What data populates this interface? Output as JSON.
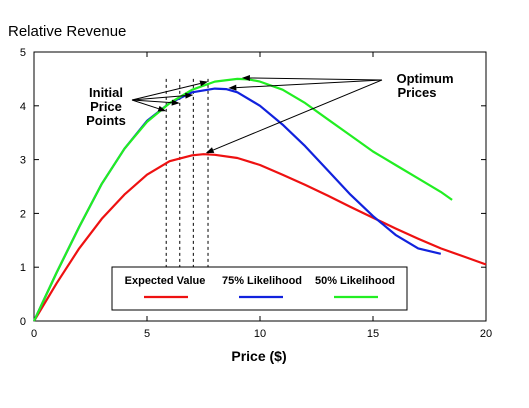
{
  "chart_data": {
    "type": "line",
    "title": "Relative Revenue",
    "xlabel": "Price ($)",
    "ylabel": "",
    "xlim": [
      0,
      20
    ],
    "ylim": [
      0,
      5
    ],
    "xticks": [
      0,
      5,
      10,
      15,
      20
    ],
    "yticks": [
      0,
      1,
      2,
      3,
      4,
      5
    ],
    "grid": false,
    "legend_position": "bottom-center",
    "series": [
      {
        "name": "Expected Value",
        "color": "#ee1111",
        "x": [
          0,
          1,
          2,
          3,
          4,
          5,
          6,
          7,
          7.5,
          8,
          9,
          10,
          11,
          12,
          13,
          14,
          15,
          16,
          17,
          18,
          19,
          20
        ],
        "y": [
          0,
          0.7,
          1.35,
          1.9,
          2.35,
          2.72,
          2.97,
          3.08,
          3.1,
          3.09,
          3.03,
          2.9,
          2.72,
          2.53,
          2.33,
          2.12,
          1.92,
          1.72,
          1.53,
          1.35,
          1.2,
          1.05
        ]
      },
      {
        "name": "75% Likelihood",
        "color": "#1122dd",
        "x": [
          0,
          1,
          2,
          3,
          4,
          5,
          6,
          7,
          8,
          8.5,
          9,
          10,
          11,
          12,
          13,
          14,
          15,
          16,
          17,
          18
        ],
        "y": [
          0,
          0.9,
          1.75,
          2.55,
          3.2,
          3.72,
          4.05,
          4.25,
          4.32,
          4.31,
          4.25,
          4.0,
          3.65,
          3.25,
          2.8,
          2.35,
          1.95,
          1.6,
          1.35,
          1.25
        ]
      },
      {
        "name": "50% Likelihood",
        "color": "#22ee22",
        "x": [
          0,
          1,
          2,
          3,
          4,
          5,
          6,
          7,
          8,
          9,
          9.5,
          10,
          11,
          12,
          13,
          14,
          15,
          16,
          17,
          18,
          18.5
        ],
        "y": [
          0,
          0.9,
          1.75,
          2.55,
          3.2,
          3.7,
          4.05,
          4.3,
          4.45,
          4.5,
          4.49,
          4.45,
          4.3,
          4.05,
          3.75,
          3.45,
          3.15,
          2.9,
          2.65,
          2.4,
          2.25
        ]
      }
    ],
    "price_point_lines_x": [
      5.85,
      6.45,
      7.05,
      7.7
    ],
    "annotations": [
      {
        "text": "Initial",
        "role": "initial-line-1"
      },
      {
        "text": "Price",
        "role": "initial-line-2"
      },
      {
        "text": "Points",
        "role": "initial-line-3"
      },
      {
        "text": "Optimum",
        "role": "optimum-line-1"
      },
      {
        "text": "Prices",
        "role": "optimum-line-2"
      }
    ]
  }
}
